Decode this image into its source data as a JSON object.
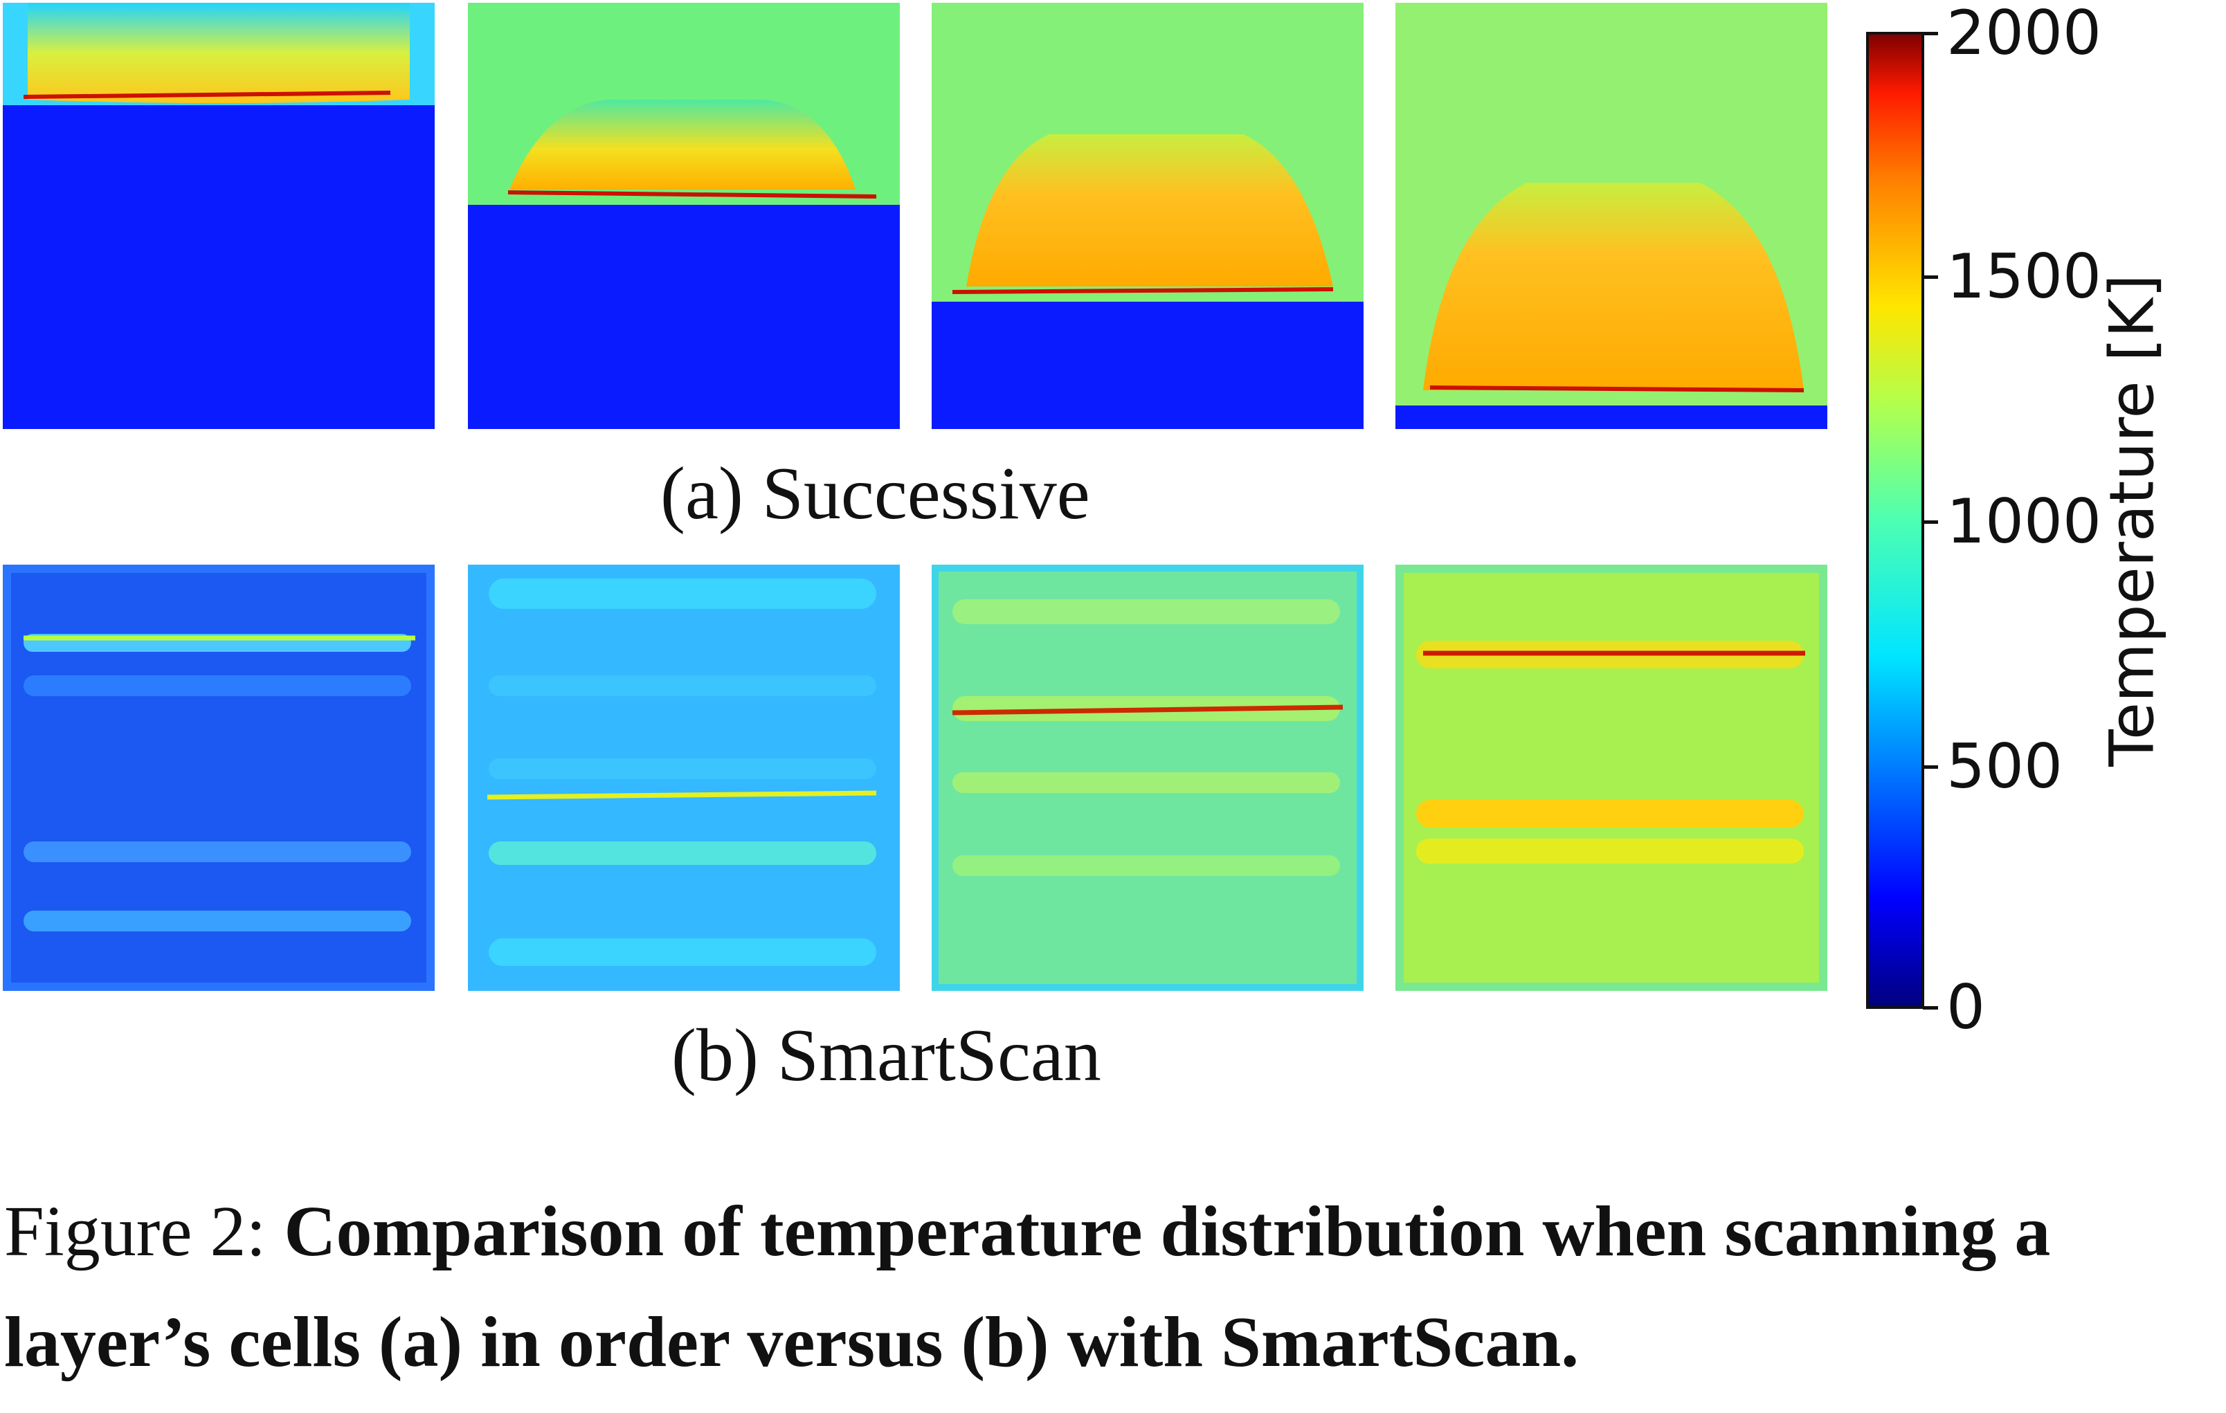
{
  "figure": {
    "row_a_label": "(a) Successive",
    "row_b_label": "(b) SmartScan",
    "caption_prefix": "Figure 2:",
    "caption_text": "Comparison of temperature distribution when scanning a layer’s cells (a) in order versus (b) with SmartScan."
  },
  "colorbar": {
    "title": "Temperature [K]",
    "ticks": [
      "2000",
      "1500",
      "1000",
      "500",
      "0"
    ],
    "colormap": "jet",
    "range": [
      0,
      2000
    ]
  },
  "colors": {
    "cold": "#0a1cff",
    "ambient_green": "#7af07a",
    "hot": "#ffb000",
    "track": "#cc1100"
  }
}
